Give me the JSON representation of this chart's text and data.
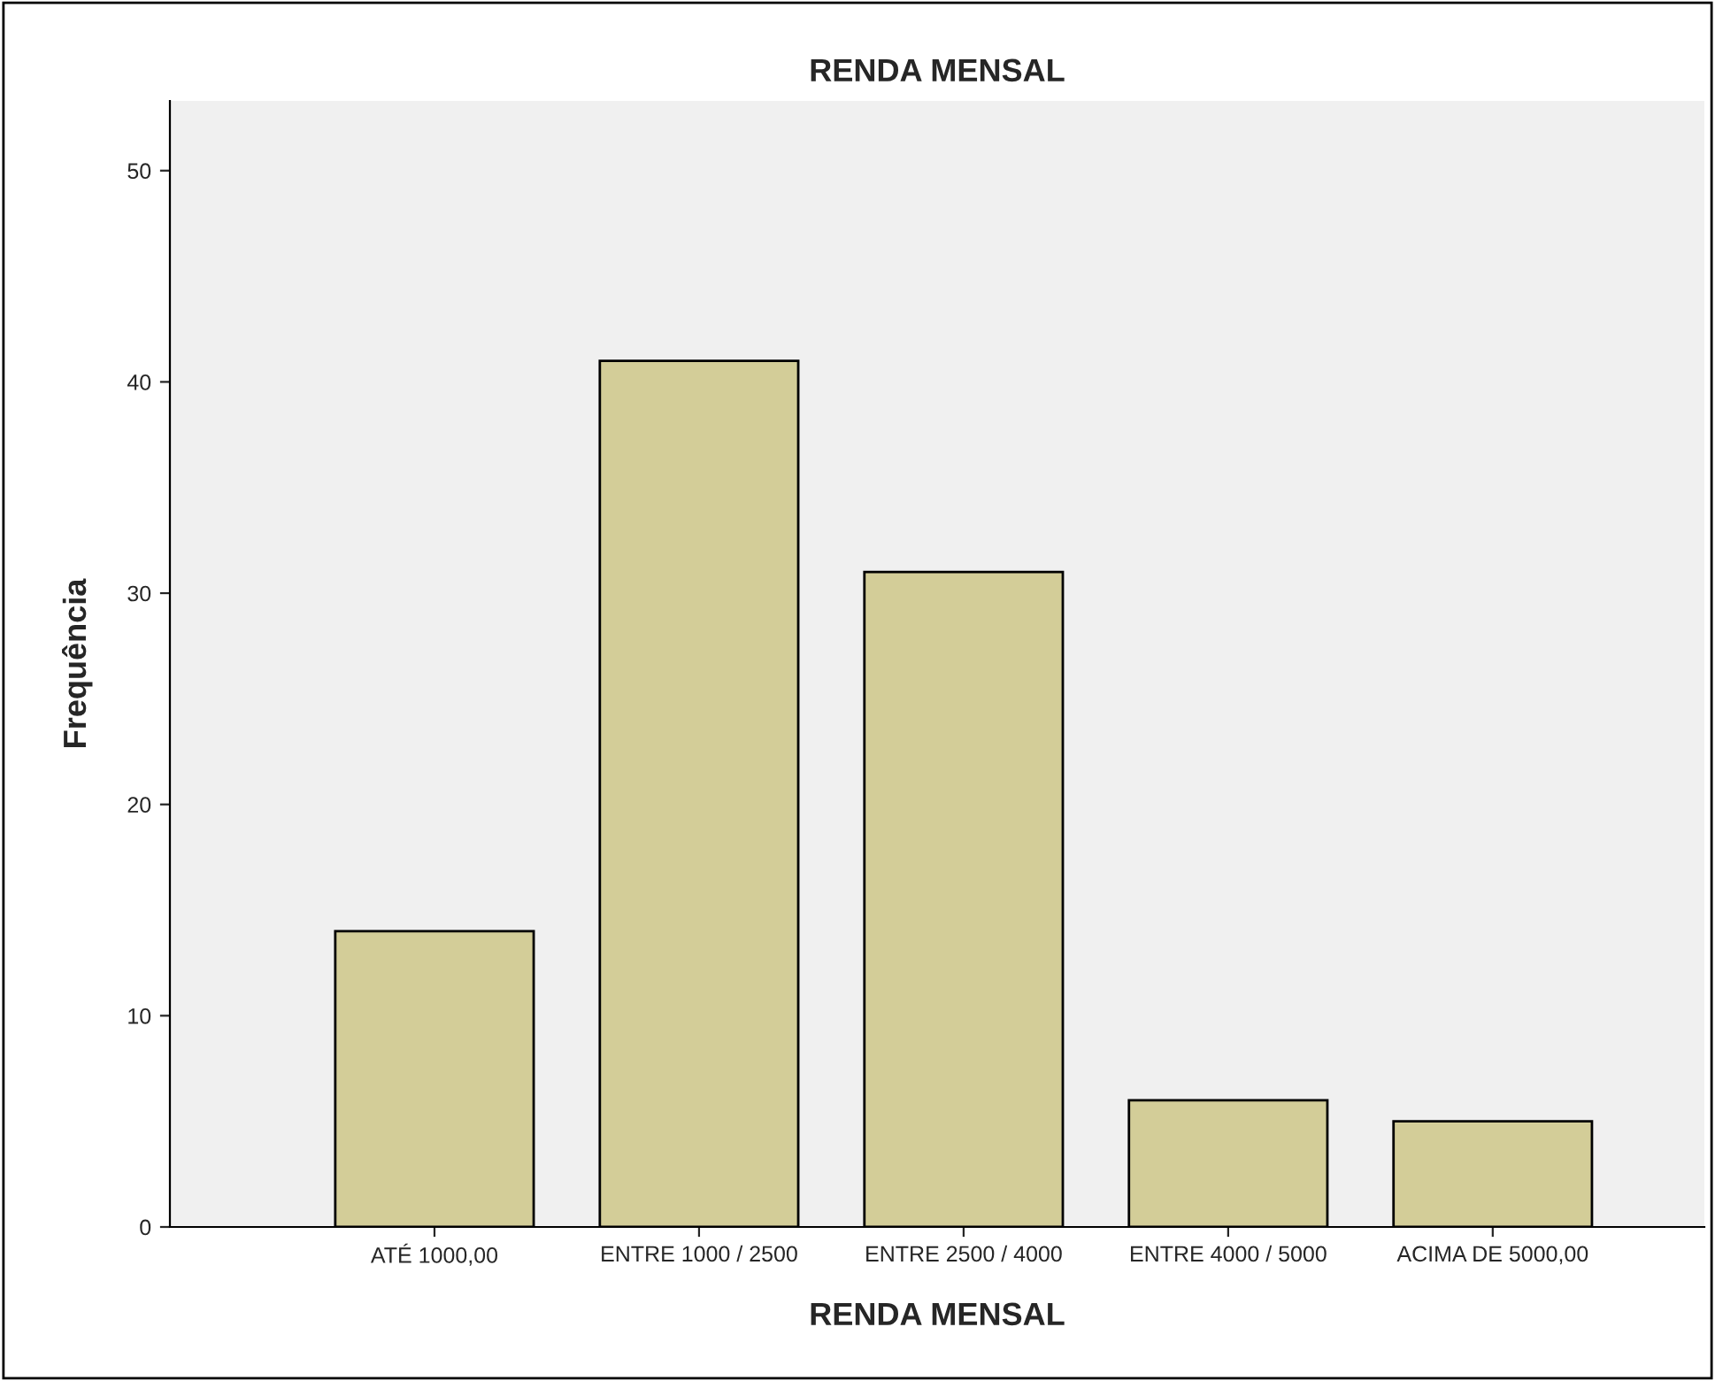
{
  "chart_data": {
    "type": "bar",
    "title": "RENDA MENSAL",
    "xlabel": "RENDA MENSAL",
    "ylabel": "Frequência",
    "categories": [
      "ATÉ 1000,00",
      "ENTRE 1000 / 2500",
      "ENTRE 2500 / 4000",
      "ENTRE 4000 / 5000",
      "ACIMA DE 5000,00"
    ],
    "values": [
      14,
      41,
      31,
      6,
      5
    ],
    "color": "#d3cd98",
    "ylim": [
      0,
      53.3
    ],
    "yticks": [
      0,
      10,
      20,
      30,
      40,
      50
    ],
    "grid": false,
    "legend": false
  }
}
